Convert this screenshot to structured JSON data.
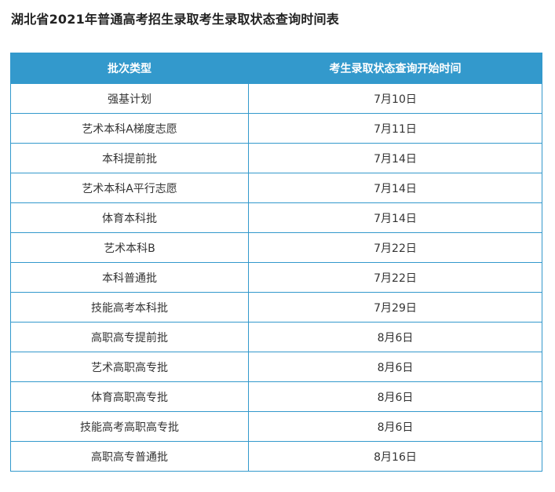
{
  "title": "湖北省2021年普通高考招生录取考生录取状态查询时间表",
  "table": {
    "headers": [
      "批次类型",
      "考生录取状态查询开始时间"
    ],
    "rows": [
      [
        "强基计划",
        "7月10日"
      ],
      [
        "艺术本科A梯度志愿",
        "7月11日"
      ],
      [
        "本科提前批",
        "7月14日"
      ],
      [
        "艺术本科A平行志愿",
        "7月14日"
      ],
      [
        "体育本科批",
        "7月14日"
      ],
      [
        "艺术本科B",
        "7月22日"
      ],
      [
        "本科普通批",
        "7月22日"
      ],
      [
        "技能高考本科批",
        "7月29日"
      ],
      [
        "高职高专提前批",
        "8月6日"
      ],
      [
        "艺术高职高专批",
        "8月6日"
      ],
      [
        "体育高职高专批",
        "8月6日"
      ],
      [
        "技能高考高职高专批",
        "8月6日"
      ],
      [
        "高职高专普通批",
        "8月16日"
      ]
    ]
  },
  "colors": {
    "header_bg": "#3399cc",
    "border": "#3399cc"
  }
}
